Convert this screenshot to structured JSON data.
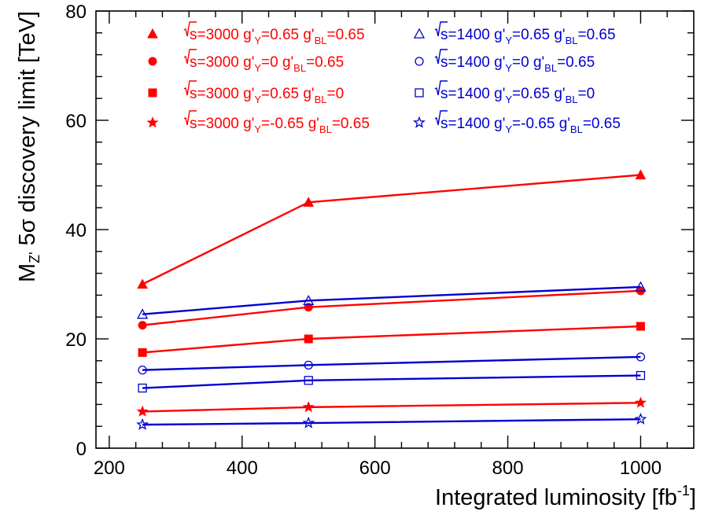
{
  "chart_data": {
    "type": "line",
    "xlabel": "Integrated luminosity [fb",
    "xlabel_sup": "-1",
    "xlabel_end": "]",
    "ylabel_parts": [
      "M",
      "Z'",
      " 5σ discovery limit [TeV]"
    ],
    "xlim": [
      180,
      1080
    ],
    "ylim": [
      0,
      80
    ],
    "xticks": [
      200,
      400,
      600,
      800,
      1000
    ],
    "yticks": [
      0,
      20,
      40,
      60,
      80
    ],
    "x": [
      250,
      500,
      1000
    ],
    "legend_position": "top",
    "colors": {
      "red": "#ff0000",
      "blue": "#0000d0"
    },
    "series": [
      {
        "energy": "3000",
        "gy": "0.65",
        "gbl": "0.65",
        "marker": "triangle",
        "filled": true,
        "color": "red",
        "values": [
          30,
          45,
          50
        ]
      },
      {
        "energy": "3000",
        "gy": "0",
        "gbl": "0.65",
        "marker": "circle",
        "filled": true,
        "color": "red",
        "values": [
          22.5,
          25.8,
          28.8
        ]
      },
      {
        "energy": "3000",
        "gy": "0.65",
        "gbl": "0",
        "marker": "square",
        "filled": true,
        "color": "red",
        "values": [
          17.5,
          20,
          22.3
        ]
      },
      {
        "energy": "3000",
        "gy": "-0.65",
        "gbl": "0.65",
        "marker": "star",
        "filled": true,
        "color": "red",
        "values": [
          6.7,
          7.5,
          8.3
        ]
      },
      {
        "energy": "1400",
        "gy": "0.65",
        "gbl": "0.65",
        "marker": "triangle",
        "filled": false,
        "color": "blue",
        "values": [
          24.5,
          27,
          29.5
        ]
      },
      {
        "energy": "1400",
        "gy": "0",
        "gbl": "0.65",
        "marker": "circle",
        "filled": false,
        "color": "blue",
        "values": [
          14.3,
          15.2,
          16.7
        ]
      },
      {
        "energy": "1400",
        "gy": "0.65",
        "gbl": "0",
        "marker": "square",
        "filled": false,
        "color": "blue",
        "values": [
          11,
          12.4,
          13.3
        ]
      },
      {
        "energy": "1400",
        "gy": "-0.65",
        "gbl": "0.65",
        "marker": "star",
        "filled": false,
        "color": "blue",
        "values": [
          4.3,
          4.6,
          5.3
        ]
      }
    ]
  }
}
